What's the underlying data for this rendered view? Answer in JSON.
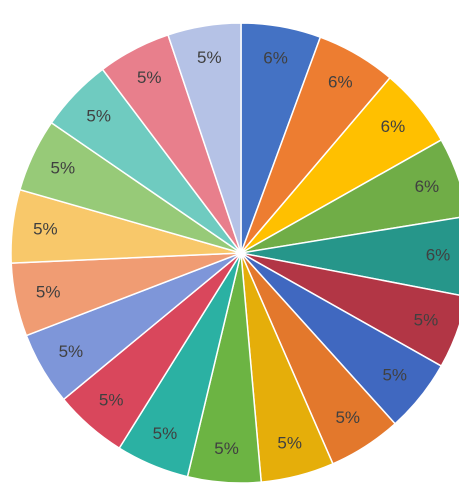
{
  "chart_data": {
    "type": "pie",
    "slices": [
      {
        "label": "6%",
        "value": 6,
        "color": "#4472C4",
        "label_color": "#404040"
      },
      {
        "label": "6%",
        "value": 6,
        "color": "#ED7D31",
        "label_color": "#404040"
      },
      {
        "label": "6%",
        "value": 6,
        "color": "#FFC000",
        "label_color": "#404040"
      },
      {
        "label": "6%",
        "value": 6,
        "color": "#70AD47",
        "label_color": "#404040"
      },
      {
        "label": "6%",
        "value": 6,
        "color": "#26968A",
        "label_color": "#404040"
      },
      {
        "label": "5%",
        "value": 5.5,
        "color": "#B23645",
        "label_color": "#404040"
      },
      {
        "label": "5%",
        "value": 5.5,
        "color": "#4068C0",
        "label_color": "#404040"
      },
      {
        "label": "5%",
        "value": 5.5,
        "color": "#E3782C",
        "label_color": "#404040"
      },
      {
        "label": "5%",
        "value": 5.5,
        "color": "#E5AE0A",
        "label_color": "#404040"
      },
      {
        "label": "5%",
        "value": 5.5,
        "color": "#6CB443",
        "label_color": "#404040"
      },
      {
        "label": "5%",
        "value": 5.5,
        "color": "#2BB1A3",
        "label_color": "#404040"
      },
      {
        "label": "5%",
        "value": 5.5,
        "color": "#D9475C",
        "label_color": "#404040"
      },
      {
        "label": "5%",
        "value": 5.5,
        "color": "#7E96D9",
        "label_color": "#404040"
      },
      {
        "label": "5%",
        "value": 5.5,
        "color": "#F09C73",
        "label_color": "#404040"
      },
      {
        "label": "5%",
        "value": 5.5,
        "color": "#F8C86A",
        "label_color": "#404040"
      },
      {
        "label": "5%",
        "value": 5.5,
        "color": "#97CA78",
        "label_color": "#404040"
      },
      {
        "label": "5%",
        "value": 5.5,
        "color": "#6FCBC0",
        "label_color": "#404040"
      },
      {
        "label": "5%",
        "value": 5.5,
        "color": "#E87F8C",
        "label_color": "#404040"
      },
      {
        "label": "5%",
        "value": 5.5,
        "color": "#B5C2E6",
        "label_color": "#404040"
      }
    ],
    "start_angle_deg": 0,
    "direction": "clockwise"
  }
}
